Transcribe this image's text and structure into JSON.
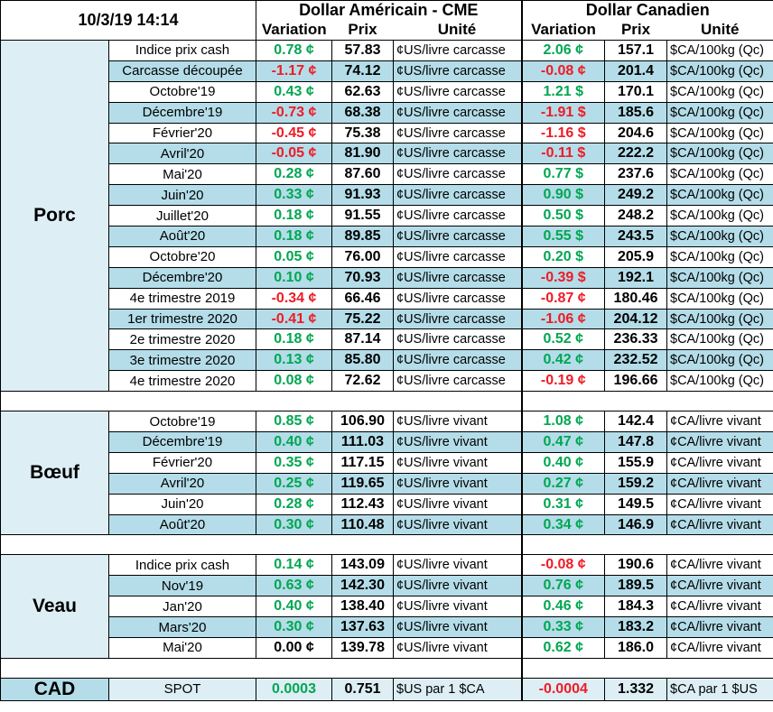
{
  "header": {
    "datetime": "10/3/19 14:14",
    "us_title": "Dollar Américain - CME",
    "ca_title": "Dollar Canadien",
    "col_variation": "Variation",
    "col_prix": "Prix",
    "col_unite": "Unité"
  },
  "sections": [
    {
      "name": "Porc",
      "rows": [
        {
          "label": "Indice prix cash",
          "us_var": "0.78 ¢",
          "us_sign": "pos",
          "us_prix": "57.83",
          "us_unit": "¢US/livre carcasse",
          "ca_var": "2.06 ¢",
          "ca_sign": "pos",
          "ca_prix": "157.1",
          "ca_unit": "$CA/100kg (Qc)"
        },
        {
          "label": "Carcasse découpée",
          "us_var": "-1.17 ¢",
          "us_sign": "neg",
          "us_prix": "74.12",
          "us_unit": "¢US/livre carcasse",
          "ca_var": "-0.08 ¢",
          "ca_sign": "neg",
          "ca_prix": "201.4",
          "ca_unit": "$CA/100kg (Qc)"
        },
        {
          "label": "Octobre'19",
          "us_var": "0.43 ¢",
          "us_sign": "pos",
          "us_prix": "62.63",
          "us_unit": "¢US/livre carcasse",
          "ca_var": "1.21 $",
          "ca_sign": "pos",
          "ca_prix": "170.1",
          "ca_unit": "$CA/100kg (Qc)"
        },
        {
          "label": "Décembre'19",
          "us_var": "-0.73 ¢",
          "us_sign": "neg",
          "us_prix": "68.38",
          "us_unit": "¢US/livre carcasse",
          "ca_var": "-1.91 $",
          "ca_sign": "neg",
          "ca_prix": "185.6",
          "ca_unit": "$CA/100kg (Qc)"
        },
        {
          "label": "Février'20",
          "us_var": "-0.45 ¢",
          "us_sign": "neg",
          "us_prix": "75.38",
          "us_unit": "¢US/livre carcasse",
          "ca_var": "-1.16 $",
          "ca_sign": "neg",
          "ca_prix": "204.6",
          "ca_unit": "$CA/100kg (Qc)"
        },
        {
          "label": "Avril'20",
          "us_var": "-0.05 ¢",
          "us_sign": "neg",
          "us_prix": "81.90",
          "us_unit": "¢US/livre carcasse",
          "ca_var": "-0.11 $",
          "ca_sign": "neg",
          "ca_prix": "222.2",
          "ca_unit": "$CA/100kg (Qc)"
        },
        {
          "label": "Mai'20",
          "us_var": "0.28 ¢",
          "us_sign": "pos",
          "us_prix": "87.60",
          "us_unit": "¢US/livre carcasse",
          "ca_var": "0.77 $",
          "ca_sign": "pos",
          "ca_prix": "237.6",
          "ca_unit": "$CA/100kg (Qc)"
        },
        {
          "label": "Juin'20",
          "us_var": "0.33 ¢",
          "us_sign": "pos",
          "us_prix": "91.93",
          "us_unit": "¢US/livre carcasse",
          "ca_var": "0.90 $",
          "ca_sign": "pos",
          "ca_prix": "249.2",
          "ca_unit": "$CA/100kg (Qc)"
        },
        {
          "label": "Juillet'20",
          "us_var": "0.18 ¢",
          "us_sign": "pos",
          "us_prix": "91.55",
          "us_unit": "¢US/livre carcasse",
          "ca_var": "0.50 $",
          "ca_sign": "pos",
          "ca_prix": "248.2",
          "ca_unit": "$CA/100kg (Qc)"
        },
        {
          "label": "Août'20",
          "us_var": "0.18 ¢",
          "us_sign": "pos",
          "us_prix": "89.85",
          "us_unit": "¢US/livre carcasse",
          "ca_var": "0.55 $",
          "ca_sign": "pos",
          "ca_prix": "243.5",
          "ca_unit": "$CA/100kg (Qc)"
        },
        {
          "label": "Octobre'20",
          "us_var": "0.05 ¢",
          "us_sign": "pos",
          "us_prix": "76.00",
          "us_unit": "¢US/livre carcasse",
          "ca_var": "0.20 $",
          "ca_sign": "pos",
          "ca_prix": "205.9",
          "ca_unit": "$CA/100kg (Qc)"
        },
        {
          "label": "Décembre'20",
          "us_var": "0.10 ¢",
          "us_sign": "pos",
          "us_prix": "70.93",
          "us_unit": "¢US/livre carcasse",
          "ca_var": "-0.39 $",
          "ca_sign": "neg",
          "ca_prix": "192.1",
          "ca_unit": "$CA/100kg (Qc)"
        },
        {
          "label": "4e trimestre 2019",
          "us_var": "-0.34 ¢",
          "us_sign": "neg",
          "us_prix": "66.46",
          "us_unit": "¢US/livre carcasse",
          "ca_var": "-0.87 ¢",
          "ca_sign": "neg",
          "ca_prix": "180.46",
          "ca_unit": "$CA/100kg (Qc)"
        },
        {
          "label": "1er trimestre 2020",
          "us_var": "-0.41 ¢",
          "us_sign": "neg",
          "us_prix": "75.22",
          "us_unit": "¢US/livre carcasse",
          "ca_var": "-1.06 ¢",
          "ca_sign": "neg",
          "ca_prix": "204.12",
          "ca_unit": "$CA/100kg (Qc)"
        },
        {
          "label": "2e trimestre 2020",
          "us_var": "0.18 ¢",
          "us_sign": "pos",
          "us_prix": "87.14",
          "us_unit": "¢US/livre carcasse",
          "ca_var": "0.52 ¢",
          "ca_sign": "pos",
          "ca_prix": "236.33",
          "ca_unit": "$CA/100kg (Qc)"
        },
        {
          "label": "3e trimestre 2020",
          "us_var": "0.13 ¢",
          "us_sign": "pos",
          "us_prix": "85.80",
          "us_unit": "¢US/livre carcasse",
          "ca_var": "0.42 ¢",
          "ca_sign": "pos",
          "ca_prix": "232.52",
          "ca_unit": "$CA/100kg (Qc)"
        },
        {
          "label": "4e trimestre 2020",
          "us_var": "0.08 ¢",
          "us_sign": "pos",
          "us_prix": "72.62",
          "us_unit": "¢US/livre carcasse",
          "ca_var": "-0.19 ¢",
          "ca_sign": "neg",
          "ca_prix": "196.66",
          "ca_unit": "$CA/100kg (Qc)"
        }
      ]
    },
    {
      "name": "Bœuf",
      "rows": [
        {
          "label": "Octobre'19",
          "us_var": "0.85 ¢",
          "us_sign": "pos",
          "us_prix": "106.90",
          "us_unit": "¢US/livre vivant",
          "ca_var": "1.08 ¢",
          "ca_sign": "pos",
          "ca_prix": "142.4",
          "ca_unit": "¢CA/livre vivant"
        },
        {
          "label": "Décembre'19",
          "us_var": "0.40 ¢",
          "us_sign": "pos",
          "us_prix": "111.03",
          "us_unit": "¢US/livre vivant",
          "ca_var": "0.47 ¢",
          "ca_sign": "pos",
          "ca_prix": "147.8",
          "ca_unit": "¢CA/livre vivant"
        },
        {
          "label": "Février'20",
          "us_var": "0.35 ¢",
          "us_sign": "pos",
          "us_prix": "117.15",
          "us_unit": "¢US/livre vivant",
          "ca_var": "0.40 ¢",
          "ca_sign": "pos",
          "ca_prix": "155.9",
          "ca_unit": "¢CA/livre vivant"
        },
        {
          "label": "Avril'20",
          "us_var": "0.25 ¢",
          "us_sign": "pos",
          "us_prix": "119.65",
          "us_unit": "¢US/livre vivant",
          "ca_var": "0.27 ¢",
          "ca_sign": "pos",
          "ca_prix": "159.2",
          "ca_unit": "¢CA/livre vivant"
        },
        {
          "label": "Juin'20",
          "us_var": "0.28 ¢",
          "us_sign": "pos",
          "us_prix": "112.43",
          "us_unit": "¢US/livre vivant",
          "ca_var": "0.31 ¢",
          "ca_sign": "pos",
          "ca_prix": "149.5",
          "ca_unit": "¢CA/livre vivant"
        },
        {
          "label": "Août'20",
          "us_var": "0.30 ¢",
          "us_sign": "pos",
          "us_prix": "110.48",
          "us_unit": "¢US/livre vivant",
          "ca_var": "0.34 ¢",
          "ca_sign": "pos",
          "ca_prix": "146.9",
          "ca_unit": "¢CA/livre vivant"
        }
      ]
    },
    {
      "name": "Veau",
      "rows": [
        {
          "label": "Indice prix cash",
          "us_var": "0.14 ¢",
          "us_sign": "pos",
          "us_prix": "143.09",
          "us_unit": "¢US/livre vivant",
          "ca_var": "-0.08 ¢",
          "ca_sign": "neg",
          "ca_prix": "190.6",
          "ca_unit": "¢CA/livre vivant"
        },
        {
          "label": "Nov'19",
          "us_var": "0.63 ¢",
          "us_sign": "pos",
          "us_prix": "142.30",
          "us_unit": "¢US/livre vivant",
          "ca_var": "0.76 ¢",
          "ca_sign": "pos",
          "ca_prix": "189.5",
          "ca_unit": "¢CA/livre vivant"
        },
        {
          "label": "Jan'20",
          "us_var": "0.40 ¢",
          "us_sign": "pos",
          "us_prix": "138.40",
          "us_unit": "¢US/livre vivant",
          "ca_var": "0.46 ¢",
          "ca_sign": "pos",
          "ca_prix": "184.3",
          "ca_unit": "¢CA/livre vivant"
        },
        {
          "label": "Mars'20",
          "us_var": "0.30 ¢",
          "us_sign": "pos",
          "us_prix": "137.63",
          "us_unit": "¢US/livre vivant",
          "ca_var": "0.33 ¢",
          "ca_sign": "pos",
          "ca_prix": "183.2",
          "ca_unit": "¢CA/livre vivant"
        },
        {
          "label": "Mai'20",
          "us_var": "0.00 ¢",
          "us_sign": "zero",
          "us_prix": "139.78",
          "us_unit": "¢US/livre vivant",
          "ca_var": "0.62 ¢",
          "ca_sign": "pos",
          "ca_prix": "186.0",
          "ca_unit": "¢CA/livre vivant"
        }
      ]
    }
  ],
  "cad": {
    "name": "CAD",
    "label": "SPOT",
    "us_var": "0.0003",
    "us_sign": "pos",
    "us_prix": "0.751",
    "us_unit": "$US par 1 $CA",
    "ca_var": "-0.0004",
    "ca_sign": "neg",
    "ca_prix": "1.332",
    "ca_unit": "$CA par 1 $US"
  },
  "colors": {
    "positive": "#00a651",
    "negative": "#ee1c25",
    "row_light": "#ddeef5",
    "row_dark": "#b4dde9"
  }
}
